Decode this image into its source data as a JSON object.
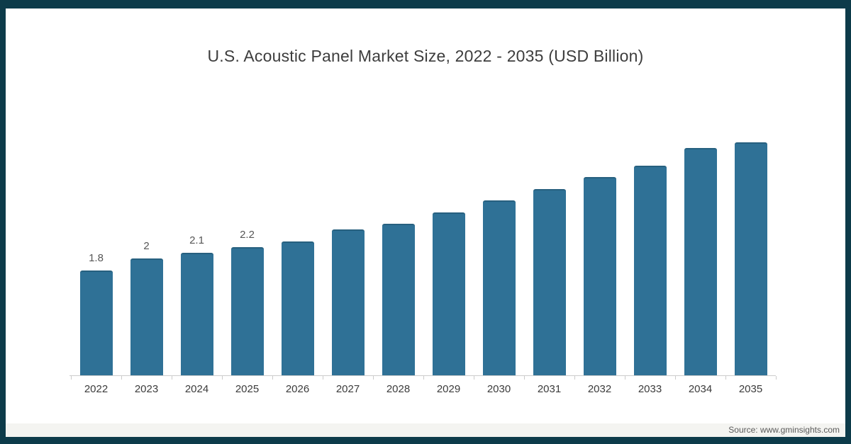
{
  "title": "U.S. Acoustic Panel Market Size, 2022 - 2035 (USD Billion)",
  "source": "Source: www.gminsights.com",
  "colors": {
    "frame": "#0d3b4a",
    "bar": "#2f7196",
    "bar_edge": "#27607f",
    "axis_line": "#cccccc",
    "title_text": "#3d3d3d",
    "axis_text": "#3b3b3b",
    "value_label_text": "#565656",
    "source_text": "#5a5a5a",
    "source_band": "#f4f4f1"
  },
  "chart_data": {
    "type": "bar",
    "title": "U.S. Acoustic Panel Market Size, 2022 - 2035 (USD Billion)",
    "categories": [
      "2022",
      "2023",
      "2024",
      "2025",
      "2026",
      "2027",
      "2028",
      "2029",
      "2030",
      "2031",
      "2032",
      "2033",
      "2034",
      "2035"
    ],
    "values": [
      1.8,
      2.0,
      2.1,
      2.2,
      2.3,
      2.5,
      2.6,
      2.8,
      3.0,
      3.2,
      3.4,
      3.6,
      3.9,
      4.0
    ],
    "visible_value_labels": [
      "1.8",
      "2",
      "2.1",
      "2.2",
      "",
      "",
      "",
      "",
      "",
      "",
      "",
      "",
      "",
      ""
    ],
    "xlabel": "",
    "ylabel": "",
    "ylim": [
      0,
      4.75
    ],
    "grid": false,
    "legend": false,
    "yaxis_visible": false,
    "bar_color": "#2f7196"
  }
}
